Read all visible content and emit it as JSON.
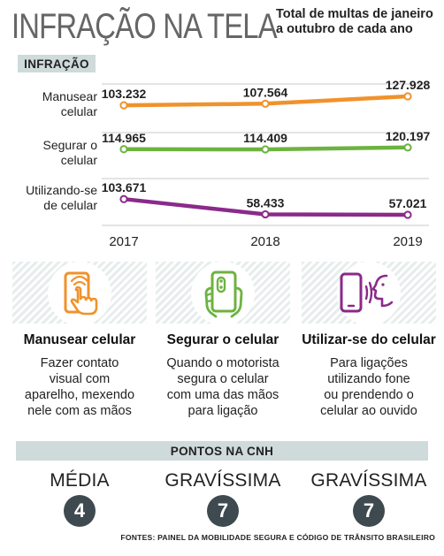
{
  "header": {
    "title": "INFRAÇÃO NA TELA",
    "subtitle_line1": "Total de multas de janeiro",
    "subtitle_line2": "a outubro de cada ano"
  },
  "section_infracao": "INFRAÇÃO",
  "row_labels": [
    {
      "line1": "Manusear",
      "line2": "celular"
    },
    {
      "line1": "Segurar o",
      "line2": "celular"
    },
    {
      "line1": "Utilizando-se",
      "line2": "de celular"
    }
  ],
  "chart_data": {
    "type": "line",
    "title": "INFRAÇÃO NA TELA",
    "subtitle": "Total de multas de janeiro a outubro de cada ano",
    "x": [
      "2017",
      "2018",
      "2019"
    ],
    "series": [
      {
        "name": "Manusear celular",
        "values": [
          103232,
          107564,
          127928
        ],
        "labels": [
          "103.232",
          "107.564",
          "127.928"
        ],
        "color": "#f0922b"
      },
      {
        "name": "Segurar o celular",
        "values": [
          114965,
          114409,
          120197
        ],
        "labels": [
          "114.965",
          "114.409",
          "120.197"
        ],
        "color": "#6cb33f"
      },
      {
        "name": "Utilizando-se de celular",
        "values": [
          103671,
          58433,
          57021
        ],
        "labels": [
          "103.671",
          "58.433",
          "57.021"
        ],
        "color": "#8a2a8a"
      }
    ],
    "grid": true,
    "legend": "left"
  },
  "colors": {
    "orange": "#f0922b",
    "green": "#6cb33f",
    "purple": "#8a2a8a",
    "badge": "#3e4a50",
    "label_bg": "#cfdada"
  },
  "cards": [
    {
      "icon": "hand-phone-icon",
      "title": "Manusear celular",
      "desc": [
        "Fazer contato",
        "visual com",
        "aparelho, mexendo",
        "nele com as mãos"
      ]
    },
    {
      "icon": "holding-phone-icon",
      "title": "Segurar o celular",
      "desc": [
        "Quando o motorista",
        "segura o celular",
        "com uma das mãos",
        "para ligação"
      ]
    },
    {
      "icon": "phone-speaking-icon",
      "title": "Utilizar-se do celular",
      "desc": [
        "Para ligações",
        "utilizando fone",
        "ou prendendo o",
        "celular ao ouvido"
      ]
    }
  ],
  "pontos_label": "PONTOS NA CNH",
  "points": [
    {
      "level": "MÉDIA",
      "value": "4"
    },
    {
      "level": "GRAVÍSSIMA",
      "value": "7"
    },
    {
      "level": "GRAVÍSSIMA",
      "value": "7"
    }
  ],
  "source": "FONTES: PAINEL DA MOBILIDADE SEGURA E CÓDIGO DE TRÂNSITO BRASILEIRO"
}
